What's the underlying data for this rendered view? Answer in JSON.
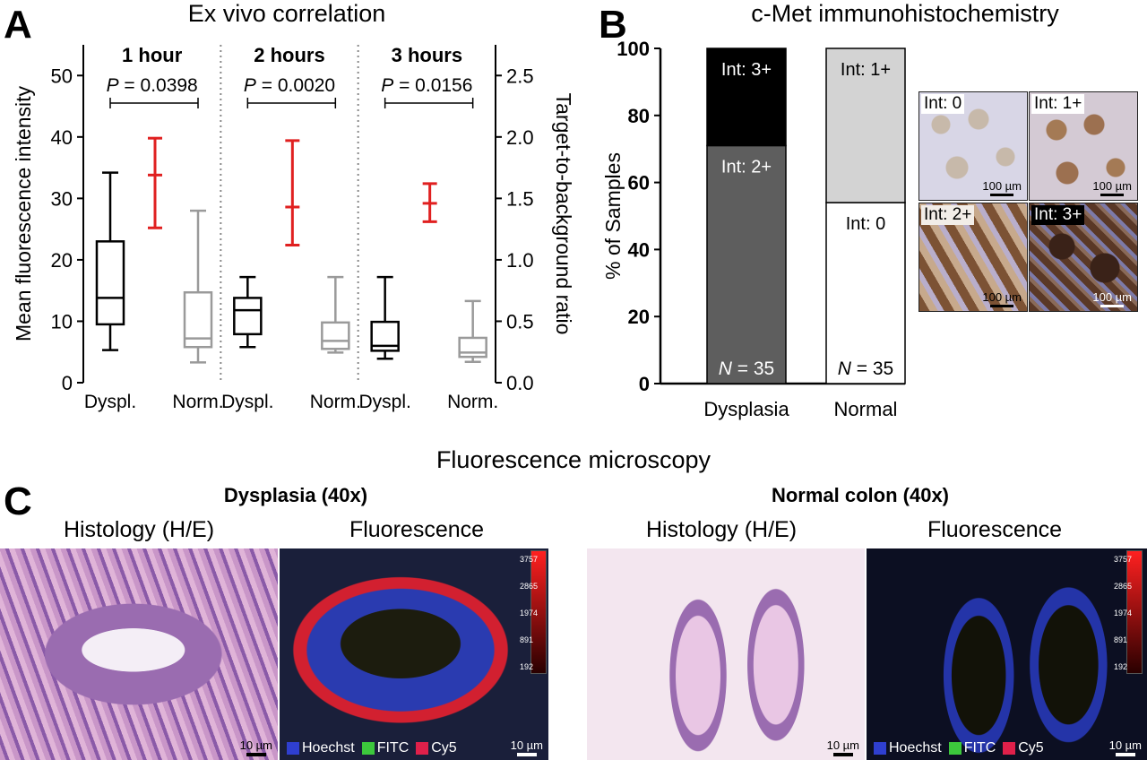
{
  "panel_a": {
    "label": "A",
    "title": "Ex vivo correlation"
  },
  "panel_b": {
    "label": "B",
    "title": "c-Met immunohistochemistry"
  },
  "panel_c": {
    "label": "C",
    "title": "Fluorescence microscopy",
    "groups": [
      {
        "title": "Dysplasia (40x)",
        "histology_label": "Histology (H/E)",
        "fluorescence_label": "Fluorescence",
        "histology_scale": "10 µm",
        "fluorescence_scale": "10 µm"
      },
      {
        "title": "Normal colon (40x)",
        "histology_label": "Histology (H/E)",
        "fluorescence_label": "Fluorescence",
        "histology_scale": "10 µm",
        "fluorescence_scale": "10 µm"
      }
    ],
    "legend": [
      {
        "label": "Hoechst",
        "color": "#2f3fd0"
      },
      {
        "label": "FITC",
        "color": "#3cc83c"
      },
      {
        "label": "Cy5",
        "color": "#e0204a"
      }
    ],
    "colorbar_ticks": [
      "3757",
      "2865",
      "1974",
      "891",
      "192"
    ]
  },
  "ihc_thumbnails": [
    {
      "label": "Int: 0",
      "scale": "100 µm"
    },
    {
      "label": "Int: 1+",
      "scale": "100 µm"
    },
    {
      "label": "Int: 2+",
      "scale": "100 µm"
    },
    {
      "label": "Int: 3+",
      "scale": "100 µm"
    }
  ],
  "chart_data": [
    {
      "type": "box",
      "title": "Ex vivo correlation",
      "ylabel": "Mean fluorescence intensity",
      "y2label": "Target-to-background ratio",
      "ylim": [
        0,
        55
      ],
      "y2lim": [
        0,
        2.75
      ],
      "yticks": [
        0,
        10,
        20,
        30,
        40,
        50
      ],
      "y2ticks": [
        "0.0",
        "0.5",
        "1.0",
        "1.5",
        "2.0",
        "2.5"
      ],
      "groups": [
        {
          "name": "1 hour",
          "p_label": "P",
          "p_value": "= 0.0398",
          "dysplasia": {
            "label": "Dyspl.",
            "min": 5.3,
            "q1": 9.5,
            "median": 13.8,
            "q3": 23,
            "max": 34.2
          },
          "normal": {
            "label": "Norm.",
            "min": 3.3,
            "q1": 5.8,
            "median": 7.2,
            "q3": 14.7,
            "max": 28
          },
          "tbr": {
            "mean": 1.69,
            "low": 1.26,
            "high": 1.99
          }
        },
        {
          "name": "2 hours",
          "p_label": "P",
          "p_value": "= 0.0020",
          "dysplasia": {
            "label": "Dyspl.",
            "min": 5.8,
            "q1": 7.9,
            "median": 11.8,
            "q3": 13.8,
            "max": 17.2
          },
          "normal": {
            "label": "Norm.",
            "min": 4.9,
            "q1": 5.5,
            "median": 6.8,
            "q3": 9.8,
            "max": 17.2
          },
          "tbr": {
            "mean": 1.43,
            "low": 1.12,
            "high": 1.97
          }
        },
        {
          "name": "3 hours",
          "p_label": "P",
          "p_value": "= 0.0156",
          "dysplasia": {
            "label": "Dyspl.",
            "min": 3.9,
            "q1": 5.2,
            "median": 6.0,
            "q3": 9.9,
            "max": 17.2
          },
          "normal": {
            "label": "Norm.",
            "min": 3.4,
            "q1": 4.2,
            "median": 4.9,
            "q3": 7.3,
            "max": 13.3
          },
          "tbr": {
            "mean": 1.46,
            "low": 1.31,
            "high": 1.62
          }
        }
      ],
      "colors": {
        "dysplasia": "#000000",
        "normal": "#9a9a9a",
        "tbr": "#e02020"
      }
    },
    {
      "type": "bar",
      "title": "c-Met immunohistochemistry",
      "ylabel": "% of Samples",
      "ylim": [
        0,
        100
      ],
      "yticks": [
        0,
        20,
        40,
        60,
        80,
        100
      ],
      "categories": [
        "Dysplasia",
        "Normal"
      ],
      "n_labels": [
        "= 35",
        "= 35"
      ],
      "n_prefix": "N",
      "stacked": true,
      "segments": [
        [
          {
            "name": "Int: 2+",
            "value": 71,
            "color": "#5e5e5e",
            "text_color": "#ffffff"
          },
          {
            "name": "Int: 3+",
            "value": 29,
            "color": "#000000",
            "text_color": "#ffffff"
          }
        ],
        [
          {
            "name": "Int: 0",
            "value": 54,
            "color": "#ffffff",
            "text_color": "#000000"
          },
          {
            "name": "Int: 1+",
            "value": 46,
            "color": "#d3d3d3",
            "text_color": "#000000"
          }
        ]
      ]
    }
  ]
}
